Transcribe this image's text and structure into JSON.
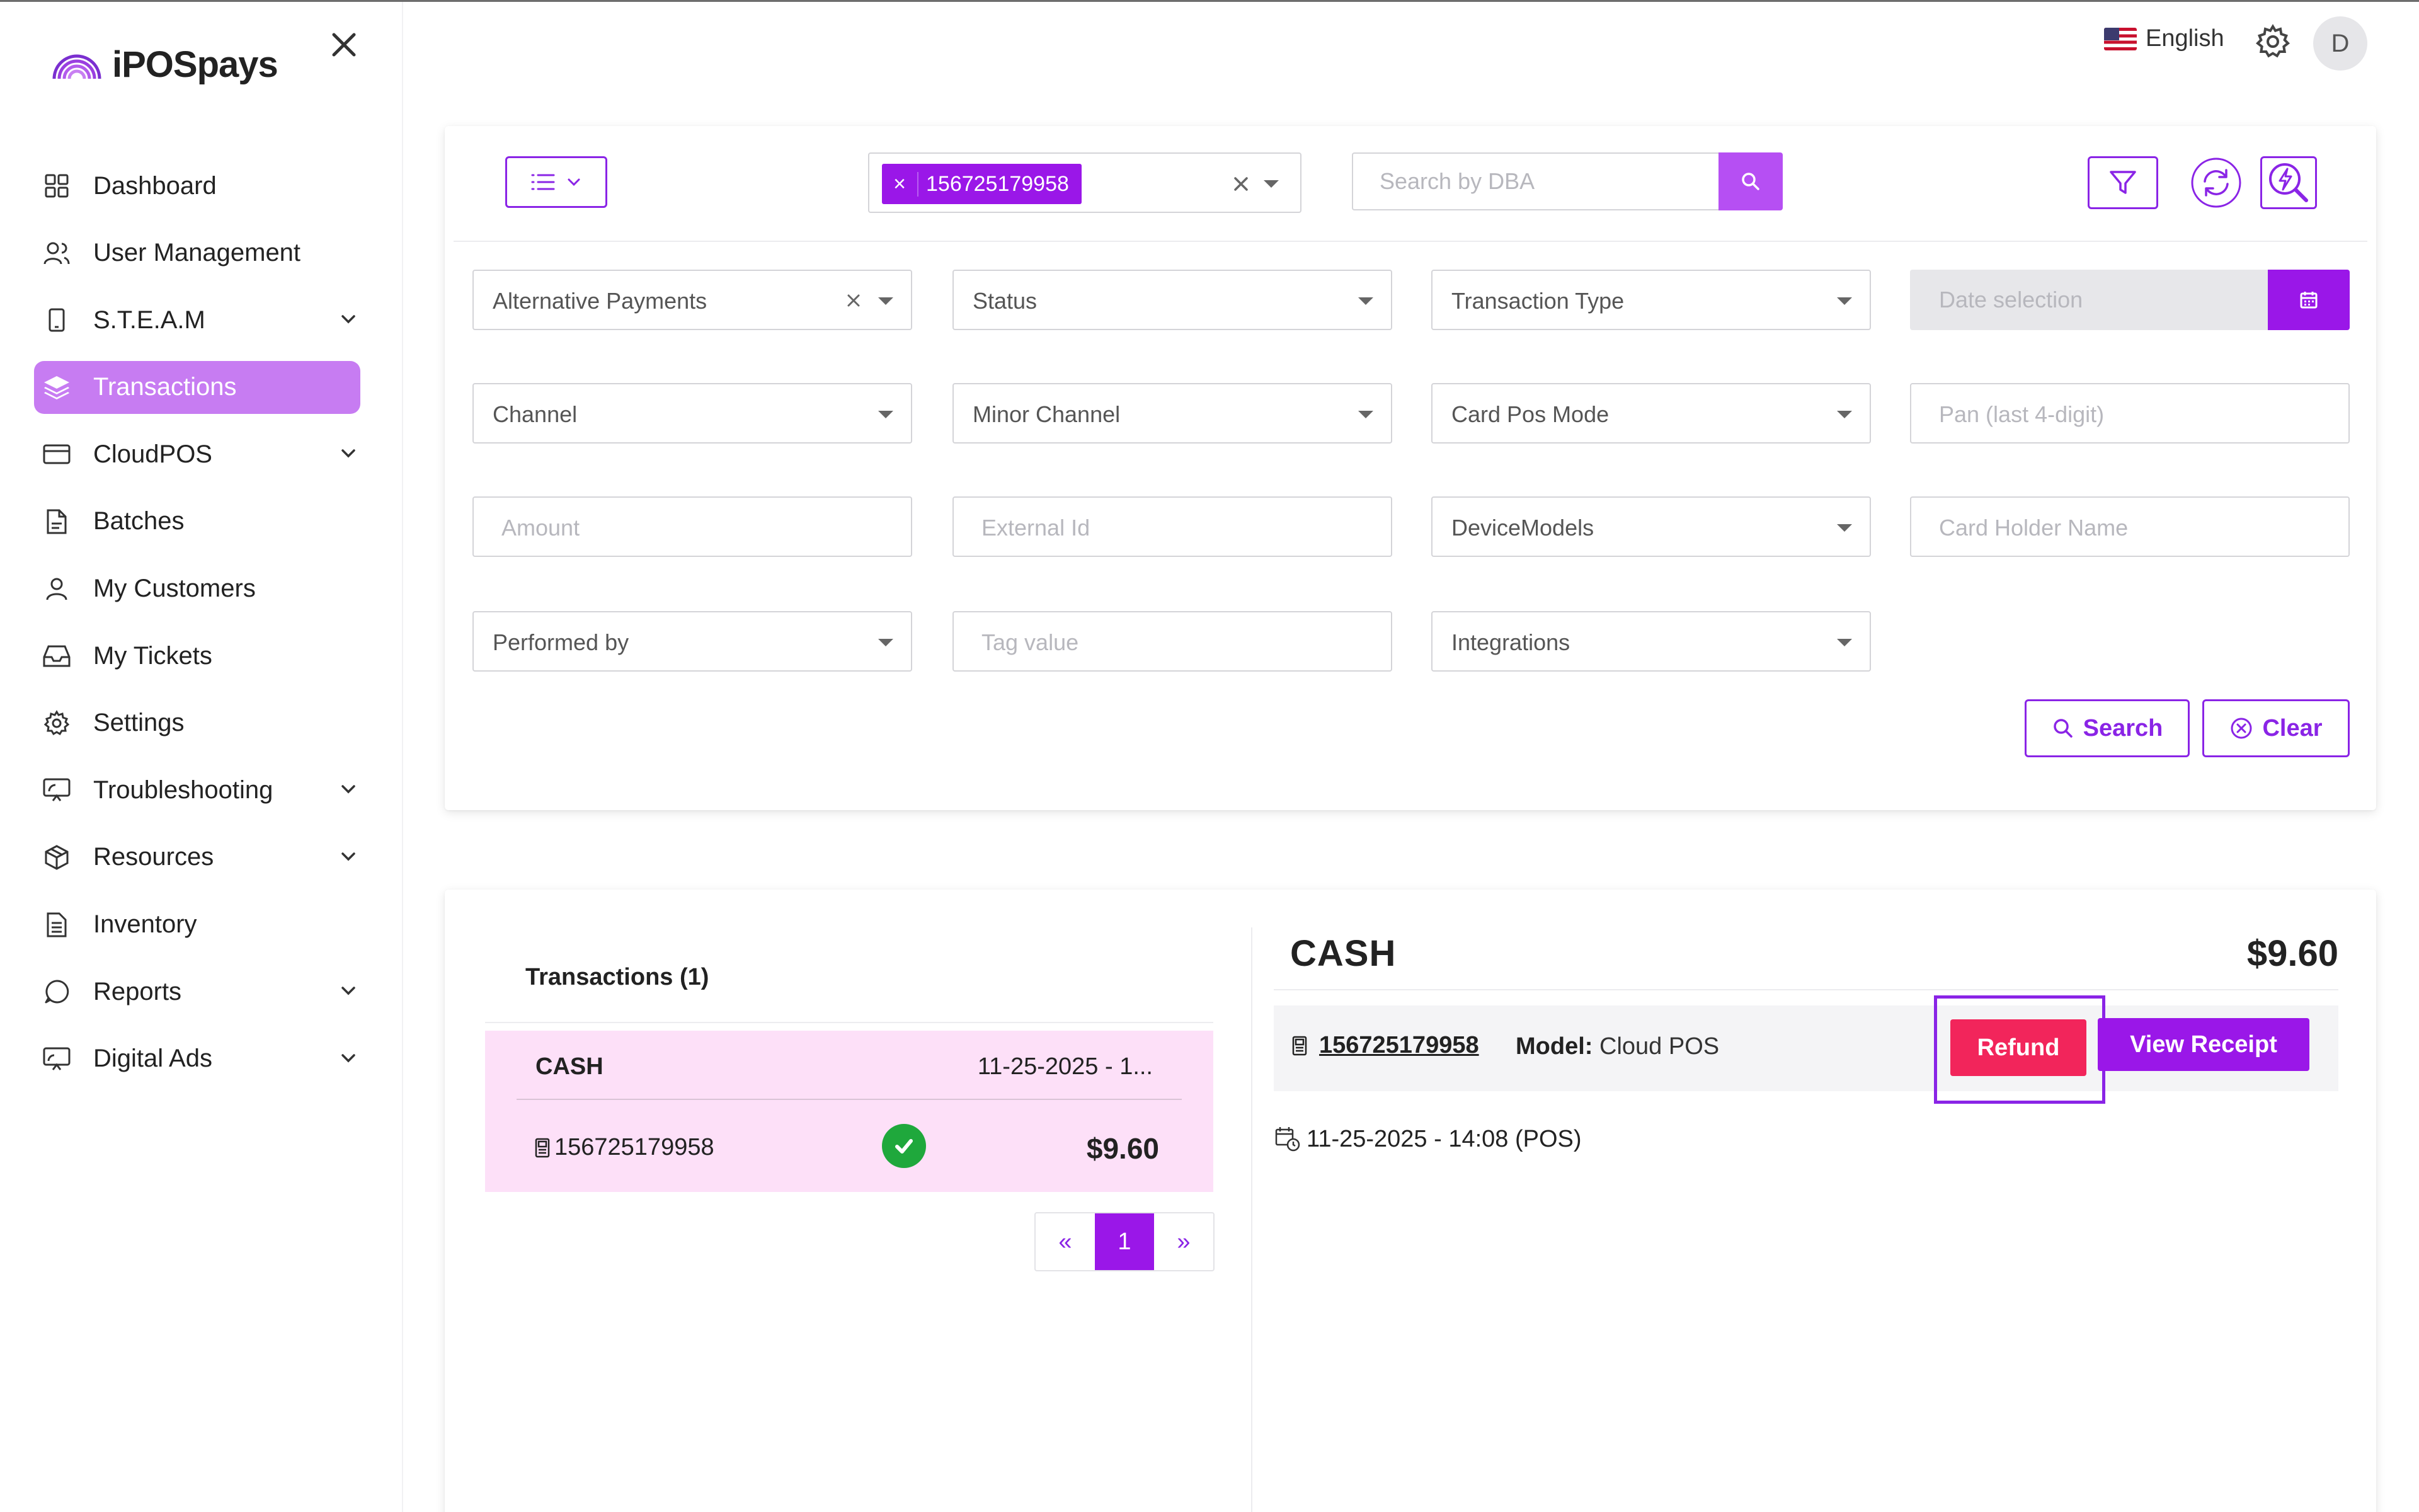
{
  "brand": {
    "name": "iPOSpays"
  },
  "header": {
    "language": "English",
    "avatar_initial": "D"
  },
  "sidebar": {
    "items": [
      {
        "label": "Dashboard"
      },
      {
        "label": "User Management"
      },
      {
        "label": "S.T.E.A.M"
      },
      {
        "label": "Transactions"
      },
      {
        "label": "CloudPOS"
      },
      {
        "label": "Batches"
      },
      {
        "label": "My Customers"
      },
      {
        "label": "My Tickets"
      },
      {
        "label": "Settings"
      },
      {
        "label": "Troubleshooting"
      },
      {
        "label": "Resources"
      },
      {
        "label": "Inventory"
      },
      {
        "label": "Reports"
      },
      {
        "label": "Digital Ads"
      }
    ]
  },
  "filters": {
    "selected_tag": "156725179958",
    "tag_remove": "×",
    "dba_placeholder": "Search by DBA",
    "payment_type": "Alternative Payments",
    "status": "Status",
    "transaction_type": "Transaction Type",
    "date_placeholder": "Date selection",
    "channel": "Channel",
    "minor_channel": "Minor Channel",
    "card_pos_mode": "Card Pos Mode",
    "pan_placeholder": "Pan (last 4-digit)",
    "amount_placeholder": "Amount",
    "external_id_placeholder": "External Id",
    "device_models": "DeviceModels",
    "card_holder_placeholder": "Card Holder Name",
    "performed_by": "Performed by",
    "tag_value_placeholder": "Tag value",
    "integrations": "Integrations",
    "search_label": "Search",
    "clear_label": "Clear"
  },
  "results": {
    "title": "Transactions (1)",
    "items": [
      {
        "type": "CASH",
        "date": "11-25-2025 - 1...",
        "device": "156725179958",
        "amount": "$9.60"
      }
    ],
    "pager": {
      "prev": "«",
      "current": "1",
      "next": "»"
    }
  },
  "detail": {
    "type": "CASH",
    "amount": "$9.60",
    "device": "156725179958",
    "model_label": "Model:",
    "model_value": "Cloud POS",
    "refund_label": "Refund",
    "receipt_label": "View Receipt",
    "datetime": "11-25-2025 - 14:08 (POS)"
  },
  "colors": {
    "accent": "#9a17e8",
    "active_nav": "#c77cf2",
    "refund": "#f2255b",
    "success": "#1fa83c",
    "highlight_row": "#fde0f8"
  }
}
